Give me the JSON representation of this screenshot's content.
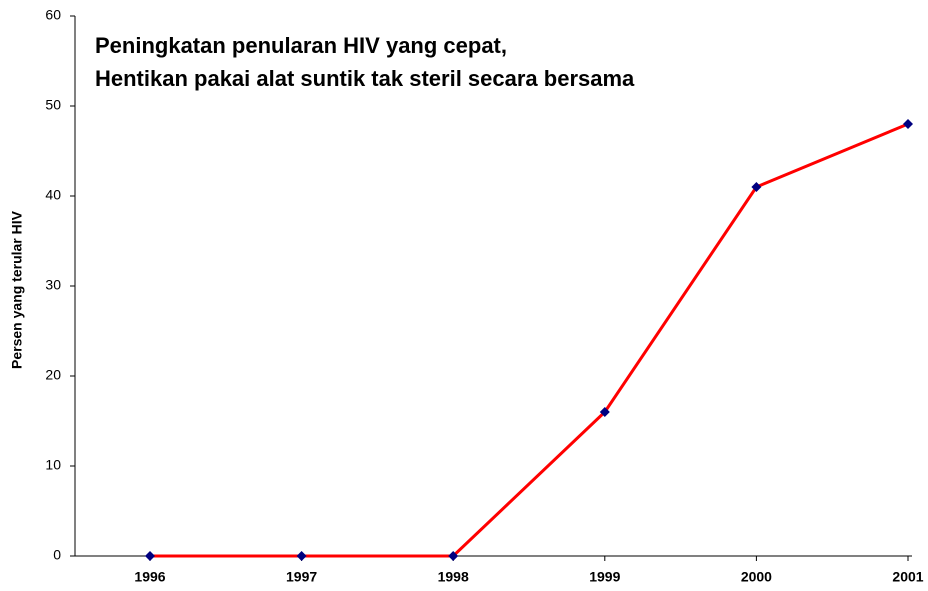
{
  "chart_data": {
    "type": "line",
    "title": [
      "Peningkatan penularan HIV yang cepat,",
      "Hentikan pakai alat suntik tak steril secara bersama"
    ],
    "y_label": "Persen yang terular HIV",
    "categories": [
      "1996",
      "1997",
      "1998",
      "1999",
      "2000",
      "2001"
    ],
    "series": [
      {
        "name": "Persen yang terular HIV",
        "color": "#ff0000",
        "marker_color": "#000080",
        "values": [
          0,
          0,
          0,
          16,
          41,
          48
        ]
      }
    ],
    "ylim": [
      0,
      60
    ],
    "yticks": [
      0,
      10,
      20,
      30,
      40,
      50,
      60
    ],
    "grid": false
  }
}
